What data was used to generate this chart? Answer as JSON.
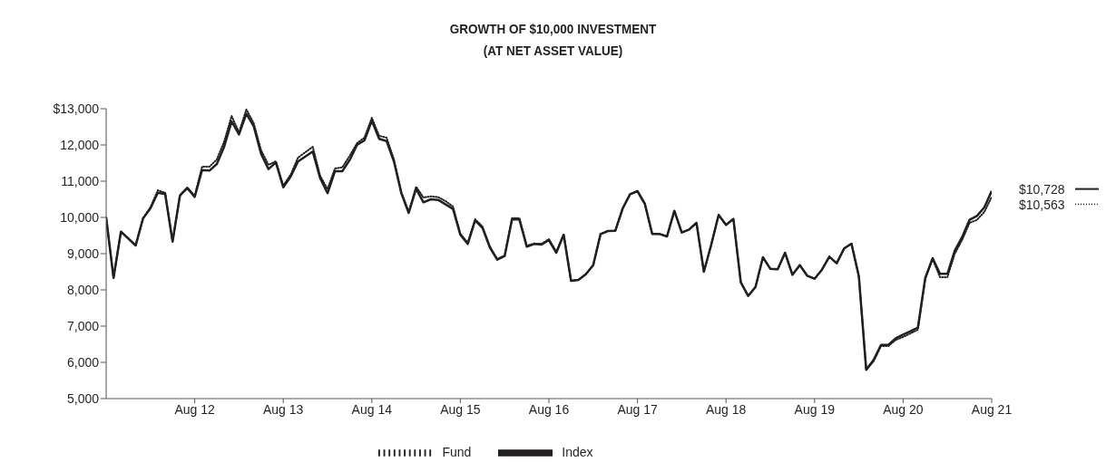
{
  "chart_data": {
    "type": "line",
    "title": "GROWTH OF $10,000 INVESTMENT\n(AT NET ASSET VALUE)",
    "xlim": [
      "2011-08",
      "2021-08"
    ],
    "xticks": [
      {
        "value": "2012-08",
        "label": "Aug 12"
      },
      {
        "value": "2013-08",
        "label": "Aug 13"
      },
      {
        "value": "2014-08",
        "label": "Aug 14"
      },
      {
        "value": "2015-08",
        "label": "Aug 15"
      },
      {
        "value": "2016-08",
        "label": "Aug 16"
      },
      {
        "value": "2017-08",
        "label": "Aug 17"
      },
      {
        "value": "2018-08",
        "label": "Aug 18"
      },
      {
        "value": "2019-08",
        "label": "Aug 19"
      },
      {
        "value": "2020-08",
        "label": "Aug 20"
      },
      {
        "value": "2021-08",
        "label": "Aug 21"
      }
    ],
    "ylim": [
      5000,
      13000
    ],
    "yticks": [
      {
        "value": 5000,
        "label": "5,000"
      },
      {
        "value": 6000,
        "label": "6,000"
      },
      {
        "value": 7000,
        "label": "7,000"
      },
      {
        "value": 8000,
        "label": "8,000"
      },
      {
        "value": 9000,
        "label": "9,000"
      },
      {
        "value": 10000,
        "label": "10,000"
      },
      {
        "value": 11000,
        "label": "11,000"
      },
      {
        "value": 12000,
        "label": "12,000"
      },
      {
        "value": 13000,
        "label": "$13,000"
      }
    ],
    "x": [
      "2011-08",
      "2011-09",
      "2011-10",
      "2011-12",
      "2012-01",
      "2012-02",
      "2012-03",
      "2012-04",
      "2012-05",
      "2012-06",
      "2012-07",
      "2012-08",
      "2012-09",
      "2012-10",
      "2012-11",
      "2012-12",
      "2013-01",
      "2013-02",
      "2013-03",
      "2013-04",
      "2013-05",
      "2013-06",
      "2013-07",
      "2013-08",
      "2013-09",
      "2013-10",
      "2013-11",
      "2013-12",
      "2014-01",
      "2014-02",
      "2014-03",
      "2014-04",
      "2014-05",
      "2014-06",
      "2014-07",
      "2014-08",
      "2014-09",
      "2014-10",
      "2014-11",
      "2014-12",
      "2015-01",
      "2015-02",
      "2015-03",
      "2015-04",
      "2015-05",
      "2015-06",
      "2015-07",
      "2015-08",
      "2015-09",
      "2015-10",
      "2015-11",
      "2015-12",
      "2016-01",
      "2016-02",
      "2016-03",
      "2016-04",
      "2016-05",
      "2016-06",
      "2016-07",
      "2016-08",
      "2016-09",
      "2016-10",
      "2016-11",
      "2016-12",
      "2017-01",
      "2017-02",
      "2017-03",
      "2017-04",
      "2017-05",
      "2017-06",
      "2017-07",
      "2017-08",
      "2017-09",
      "2017-10",
      "2017-11",
      "2017-12",
      "2018-01",
      "2018-02",
      "2018-03",
      "2018-04",
      "2018-05",
      "2018-06",
      "2018-07",
      "2018-08",
      "2018-09",
      "2018-10",
      "2018-11",
      "2018-12",
      "2019-01",
      "2019-02",
      "2019-03",
      "2019-04",
      "2019-05",
      "2019-06",
      "2019-07",
      "2019-08",
      "2019-09",
      "2019-10",
      "2019-11",
      "2019-12",
      "2020-01",
      "2020-02",
      "2020-03",
      "2020-04",
      "2020-05",
      "2020-06",
      "2020-07",
      "2020-08",
      "2020-09",
      "2020-10",
      "2020-11",
      "2020-12",
      "2021-01",
      "2021-02",
      "2021-03",
      "2021-04",
      "2021-05",
      "2021-06",
      "2021-07",
      "2021-08"
    ],
    "series": [
      {
        "name": "Fund",
        "color": "#231f20",
        "line_style": "dotted",
        "values": [
          10000,
          8333,
          9608,
          9225,
          9975,
          10280,
          10750,
          10680,
          9333,
          10620,
          10830,
          10600,
          11400,
          11400,
          11600,
          12100,
          12800,
          12350,
          12980,
          12600,
          11850,
          11450,
          11550,
          10880,
          11180,
          11650,
          11800,
          11950,
          11150,
          10780,
          11350,
          11380,
          11700,
          12050,
          12200,
          12750,
          12250,
          12200,
          11600,
          10700,
          10150,
          10850,
          10550,
          10580,
          10560,
          10450,
          10300,
          9550,
          9300,
          9950,
          9750,
          9200,
          8850,
          8950,
          9980,
          9980,
          9220,
          9280,
          9270,
          9400,
          9050,
          9540,
          8250,
          8275,
          8433,
          8683,
          9542,
          9625,
          9633,
          10250,
          10642,
          10725,
          10375,
          9542,
          9542,
          9475,
          10183,
          9583,
          9667,
          9850,
          8500,
          9250,
          10067,
          9792,
          9958,
          8208,
          7833,
          8083,
          8900,
          8583,
          8567,
          9025,
          8417,
          8683,
          8392,
          8308,
          8558,
          8917,
          8733,
          9142,
          9275,
          8375,
          5792,
          6030,
          6450,
          6450,
          6620,
          6700,
          6800,
          6900,
          8300,
          8850,
          8350,
          8350,
          9000,
          9380,
          9850,
          9930,
          10150,
          10563
        ]
      },
      {
        "name": "Index",
        "color": "#231f20",
        "line_style": "solid",
        "values": [
          10000,
          8333,
          9608,
          9225,
          9975,
          10250,
          10683,
          10642,
          9333,
          10600,
          10808,
          10567,
          11308,
          11292,
          11475,
          11958,
          12650,
          12292,
          12858,
          12517,
          11750,
          11333,
          11517,
          10833,
          11125,
          11542,
          11683,
          11817,
          11083,
          10667,
          11275,
          11275,
          11583,
          12000,
          12125,
          12667,
          12167,
          12108,
          11542,
          10667,
          10125,
          10792,
          10417,
          10500,
          10483,
          10358,
          10233,
          9517,
          9267,
          9917,
          9708,
          9167,
          8833,
          8933,
          9942,
          9942,
          9192,
          9267,
          9250,
          9375,
          9025,
          9517,
          8250,
          8275,
          8433,
          8683,
          9542,
          9625,
          9633,
          10250,
          10642,
          10725,
          10375,
          9542,
          9542,
          9475,
          10183,
          9583,
          9667,
          9850,
          8500,
          9250,
          10067,
          9792,
          9958,
          8208,
          7833,
          8083,
          8900,
          8583,
          8567,
          9025,
          8417,
          8683,
          8392,
          8308,
          8558,
          8917,
          8733,
          9142,
          9275,
          8375,
          5792,
          6067,
          6483,
          6483,
          6667,
          6767,
          6858,
          6958,
          8333,
          8875,
          8442,
          8442,
          9083,
          9458,
          9933,
          10042,
          10275,
          10728
        ]
      }
    ],
    "annotations": [
      {
        "text": "$10,728",
        "x": "2021-08",
        "y": 10728
      },
      {
        "text": "$10,563",
        "x": "2021-08",
        "y": 10563
      }
    ],
    "legend": "bottom",
    "grid": false,
    "marker": "none"
  }
}
